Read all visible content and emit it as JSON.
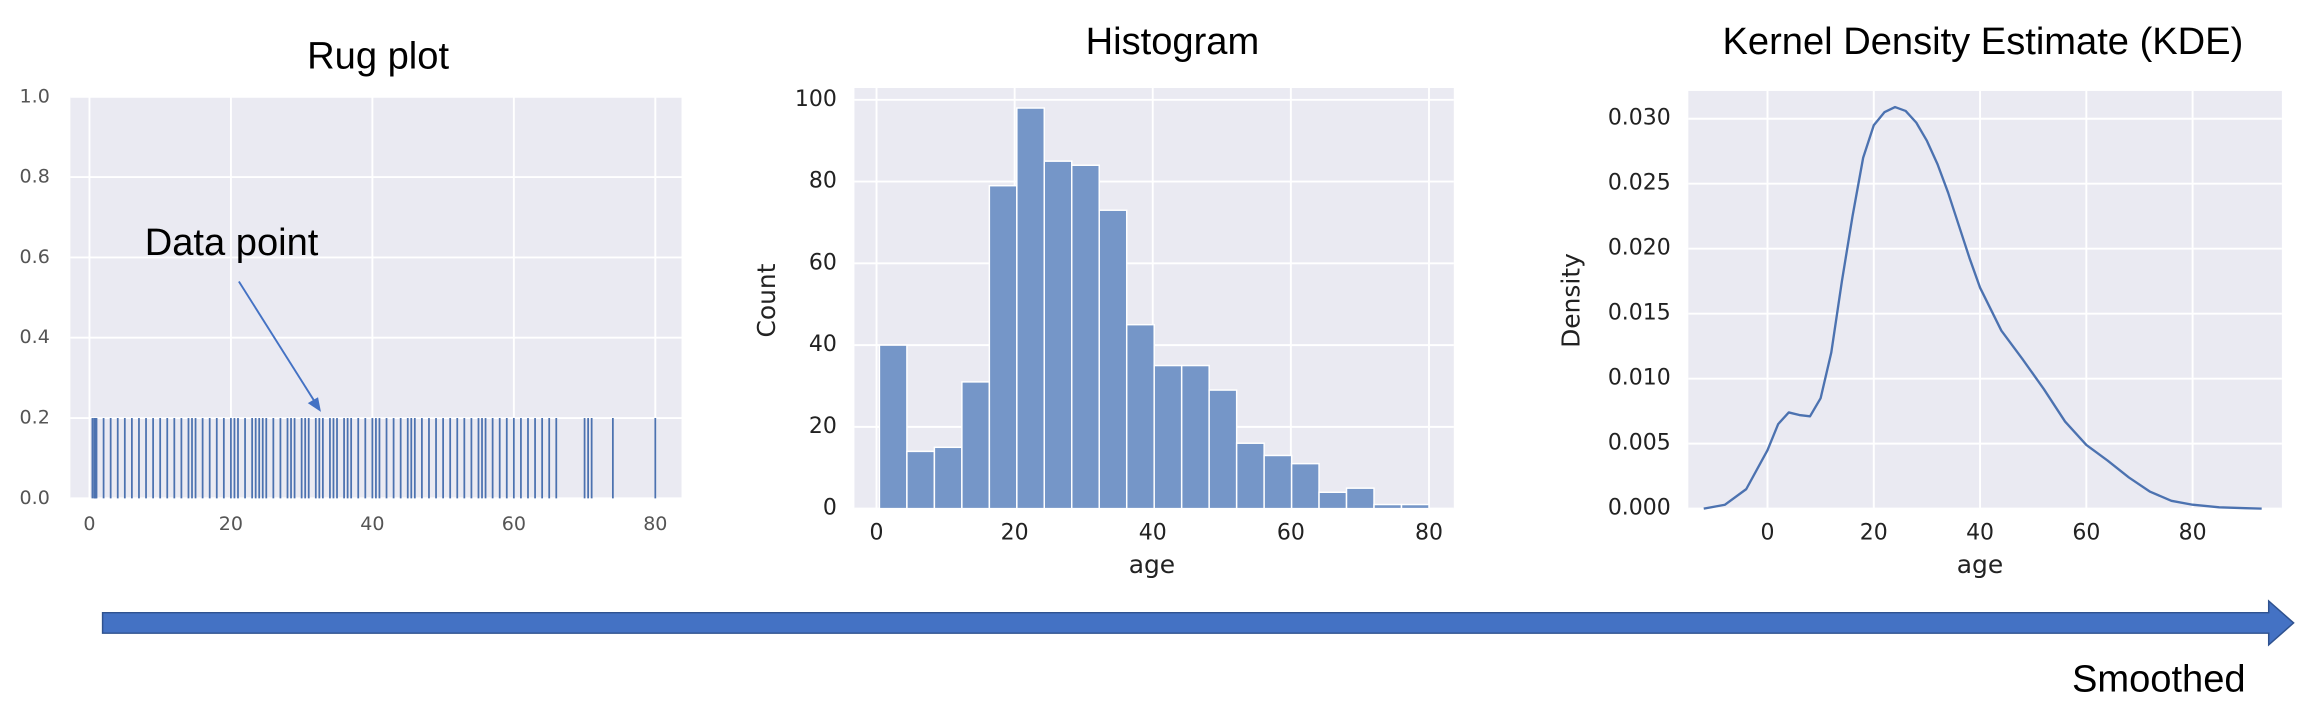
{
  "chart_data": [
    {
      "type": "rug",
      "title": "Rug plot",
      "annotation": "Data point",
      "values": [
        0.42,
        0.67,
        0.75,
        0.83,
        0.92,
        1,
        2,
        3,
        4,
        5,
        6,
        7,
        8,
        9,
        10,
        11,
        12,
        13,
        14,
        14.5,
        15,
        16,
        17,
        18,
        19,
        20,
        20.5,
        21,
        22,
        23,
        23.5,
        24,
        24.5,
        25,
        26,
        27,
        28,
        28.5,
        29,
        30,
        30.5,
        31,
        32,
        32.5,
        33,
        34,
        34.5,
        35,
        36,
        36.5,
        37,
        38,
        39,
        40,
        40.5,
        41,
        42,
        43,
        44,
        45,
        45.5,
        46,
        47,
        48,
        49,
        50,
        51,
        52,
        53,
        54,
        55,
        55.5,
        56,
        57,
        58,
        59,
        60,
        61,
        62,
        63,
        64,
        65,
        66,
        70,
        70.5,
        71,
        74,
        80
      ],
      "rug_height": 0.2,
      "color": "#4c72b0",
      "xlim": [
        -2.7,
        83.7
      ],
      "xticks": [
        0,
        20,
        40,
        60,
        80
      ],
      "ylim": [
        0,
        1
      ],
      "yticks": [
        {
          "value": 0,
          "label": "0.0"
        },
        0.2,
        0.4,
        0.6,
        0.8,
        {
          "value": 1,
          "label": "1.0"
        }
      ],
      "grid": true
    },
    {
      "type": "histogram",
      "title": "Histogram",
      "xlabel": "age",
      "ylabel": "Count",
      "bins": [
        0.42,
        4.4,
        8.38,
        12.36,
        16.34,
        20.32,
        24.29,
        28.27,
        32.25,
        36.23,
        40.21,
        44.19,
        48.17,
        52.15,
        56.13,
        60.11,
        64.08,
        68.06,
        72.04,
        76.02,
        80
      ],
      "values": [
        40,
        14,
        15,
        31,
        79,
        98,
        85,
        84,
        73,
        45,
        35,
        35,
        29,
        16,
        13,
        11,
        4,
        5,
        1,
        1
      ],
      "color": "#7596c8",
      "xlim": [
        -3.2,
        83.6
      ],
      "xticks": [
        0,
        20,
        40,
        60,
        80
      ],
      "ylim": [
        0,
        102.9
      ],
      "yticks": [
        0,
        20,
        40,
        60,
        80,
        100
      ],
      "grid": true
    },
    {
      "type": "line",
      "title": "Kernel Density Estimate (KDE)",
      "xlabel": "age",
      "ylabel": "Density",
      "x": [
        -12,
        -8,
        -4,
        0,
        2,
        4,
        6,
        8,
        10,
        12,
        14,
        16,
        18,
        20,
        22,
        24,
        26,
        28,
        30,
        32,
        34,
        36,
        38,
        40,
        44,
        48,
        52,
        56,
        60,
        64,
        68,
        72,
        76,
        80,
        85,
        90,
        93
      ],
      "values": [
        0,
        0.0003,
        0.0015,
        0.0045,
        0.0065,
        0.0074,
        0.0072,
        0.0071,
        0.0085,
        0.012,
        0.0175,
        0.0225,
        0.027,
        0.0295,
        0.0305,
        0.0309,
        0.0306,
        0.0297,
        0.0283,
        0.0265,
        0.0243,
        0.0218,
        0.0193,
        0.017,
        0.0137,
        0.0115,
        0.0092,
        0.0067,
        0.0049,
        0.0037,
        0.0024,
        0.0013,
        0.0006,
        0.0003,
        0.0001,
        3e-05,
        0
      ],
      "color": "#4c72b0",
      "xlim": [
        -14.9,
        96.8
      ],
      "xticks": [
        0,
        20,
        40,
        60,
        80
      ],
      "ylim": [
        0,
        0.03214
      ],
      "yticks": [
        {
          "value": 0,
          "label": "0.000"
        },
        0.005,
        {
          "value": 0.01,
          "label": "0.010"
        },
        0.015,
        {
          "value": 0.02,
          "label": "0.020"
        },
        0.025,
        {
          "value": 0.03,
          "label": "0.030"
        }
      ],
      "grid": true
    }
  ],
  "arrow_label": "Smoothed"
}
